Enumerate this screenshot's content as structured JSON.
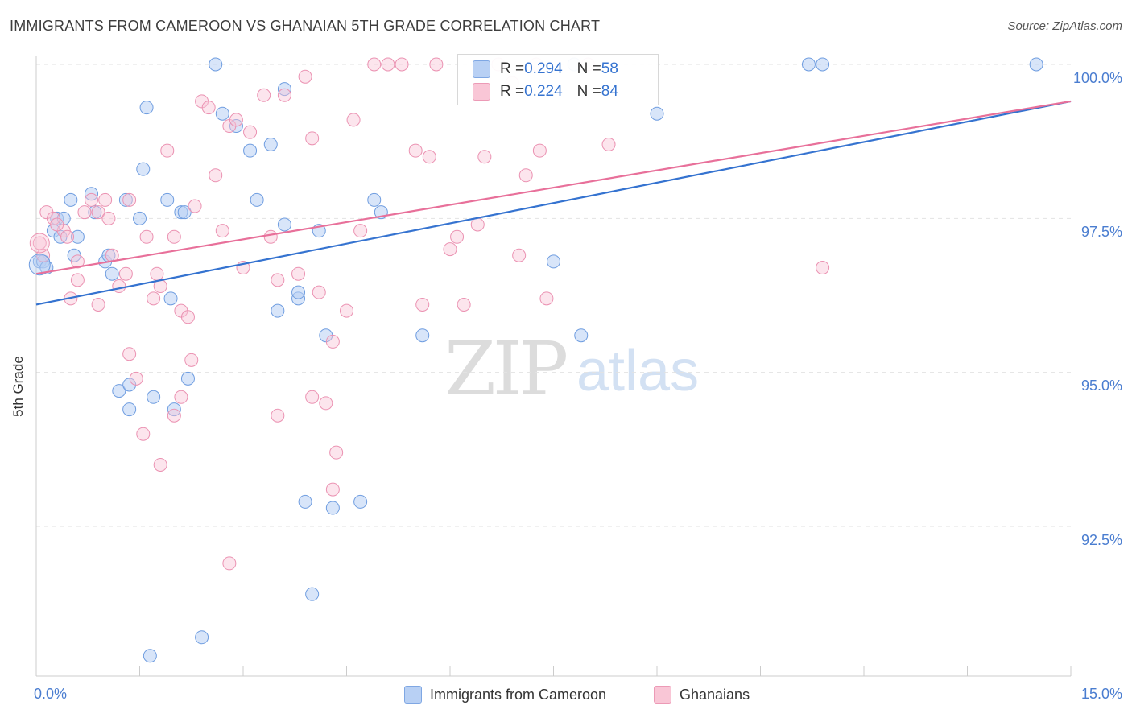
{
  "title": "IMMIGRANTS FROM CAMEROON VS GHANAIAN 5TH GRADE CORRELATION CHART",
  "source": "Source: ZipAtlas.com",
  "watermark": {
    "zip": "ZIP",
    "atlas": "atlas"
  },
  "legend": {
    "rows": [
      {
        "r_label": "R = ",
        "r_value": "0.294",
        "n_label": "N = ",
        "n_value": "58"
      },
      {
        "r_label": "R = ",
        "r_value": "0.224",
        "n_label": "N = ",
        "n_value": "84"
      }
    ]
  },
  "colors": {
    "blue": "#3573d0",
    "pink": "#e8709a",
    "blue_fill": "#b8d0f4",
    "pink_fill": "#f9c6d6",
    "axis_label": "#4a7dd0"
  },
  "chart_data": {
    "type": "scatter",
    "title": "IMMIGRANTS FROM CAMEROON VS GHANAIAN 5TH GRADE CORRELATION CHART",
    "xlabel": "",
    "ylabel": "5th Grade",
    "xlim": [
      0.0,
      15.0
    ],
    "ylim": [
      90.2,
      100.2
    ],
    "x_tick_labels": [
      "0.0%",
      "15.0%"
    ],
    "y_ticks": [
      92.5,
      95.0,
      97.5,
      100.0
    ],
    "y_tick_labels": [
      "92.5%",
      "95.0%",
      "97.5%",
      "100.0%"
    ],
    "grid": true,
    "legend_position": "top-center",
    "series": [
      {
        "name": "Immigrants from Cameroon",
        "color": "#3573d0",
        "trend": {
          "x": [
            0.0,
            15.0
          ],
          "y": [
            96.1,
            99.4
          ]
        },
        "points": [
          [
            0.05,
            96.8
          ],
          [
            0.1,
            96.8
          ],
          [
            0.25,
            97.3
          ],
          [
            0.3,
            97.5
          ],
          [
            0.4,
            97.5
          ],
          [
            0.5,
            97.8
          ],
          [
            0.55,
            96.9
          ],
          [
            0.6,
            97.2
          ],
          [
            0.8,
            97.9
          ],
          [
            0.85,
            97.6
          ],
          [
            1.0,
            96.8
          ],
          [
            1.1,
            96.6
          ],
          [
            1.05,
            96.9
          ],
          [
            1.3,
            97.8
          ],
          [
            1.5,
            97.5
          ],
          [
            1.55,
            98.3
          ],
          [
            1.6,
            99.3
          ],
          [
            1.9,
            97.8
          ],
          [
            1.95,
            96.2
          ],
          [
            2.1,
            97.6
          ],
          [
            2.15,
            97.6
          ],
          [
            2.6,
            100.0
          ],
          [
            2.7,
            99.2
          ],
          [
            2.9,
            99.0
          ],
          [
            3.1,
            98.6
          ],
          [
            3.2,
            97.8
          ],
          [
            3.4,
            98.7
          ],
          [
            3.6,
            99.6
          ],
          [
            3.5,
            96.0
          ],
          [
            3.6,
            97.4
          ],
          [
            4.1,
            97.3
          ],
          [
            4.2,
            95.6
          ],
          [
            3.8,
            96.2
          ],
          [
            4.3,
            92.8
          ],
          [
            4.7,
            92.9
          ],
          [
            4.9,
            97.8
          ],
          [
            5.0,
            97.6
          ],
          [
            1.2,
            94.7
          ],
          [
            1.35,
            94.4
          ],
          [
            1.35,
            94.8
          ],
          [
            1.7,
            94.6
          ],
          [
            2.0,
            94.4
          ],
          [
            2.2,
            94.9
          ],
          [
            3.8,
            96.3
          ],
          [
            4.0,
            91.4
          ],
          [
            3.9,
            92.9
          ],
          [
            2.4,
            90.7
          ],
          [
            1.65,
            90.4
          ],
          [
            5.6,
            95.6
          ],
          [
            7.8,
            100.0
          ],
          [
            7.5,
            96.8
          ],
          [
            7.9,
            95.6
          ],
          [
            9.0,
            99.2
          ],
          [
            11.2,
            100.0
          ],
          [
            11.4,
            100.0
          ],
          [
            14.5,
            100.0
          ],
          [
            0.15,
            96.7
          ],
          [
            0.35,
            97.2
          ]
        ]
      },
      {
        "name": "Ghanaians",
        "color": "#e8709a",
        "trend": {
          "x": [
            0.0,
            15.0
          ],
          "y": [
            96.6,
            99.4
          ]
        },
        "points": [
          [
            0.05,
            97.1
          ],
          [
            0.1,
            96.9
          ],
          [
            0.15,
            97.6
          ],
          [
            0.25,
            97.5
          ],
          [
            0.4,
            97.3
          ],
          [
            0.45,
            97.2
          ],
          [
            0.5,
            96.2
          ],
          [
            0.6,
            96.8
          ],
          [
            0.7,
            97.6
          ],
          [
            0.8,
            97.8
          ],
          [
            0.9,
            97.6
          ],
          [
            1.0,
            97.8
          ],
          [
            1.05,
            97.5
          ],
          [
            1.1,
            96.9
          ],
          [
            1.2,
            96.4
          ],
          [
            1.3,
            96.6
          ],
          [
            1.35,
            97.8
          ],
          [
            1.6,
            97.2
          ],
          [
            1.7,
            96.2
          ],
          [
            1.75,
            96.6
          ],
          [
            1.8,
            96.4
          ],
          [
            1.9,
            98.6
          ],
          [
            2.0,
            97.2
          ],
          [
            2.1,
            96.0
          ],
          [
            2.2,
            95.9
          ],
          [
            2.3,
            97.7
          ],
          [
            2.4,
            99.4
          ],
          [
            2.5,
            99.3
          ],
          [
            2.6,
            98.2
          ],
          [
            2.7,
            97.3
          ],
          [
            2.8,
            99.0
          ],
          [
            2.9,
            99.1
          ],
          [
            3.0,
            96.7
          ],
          [
            3.1,
            98.9
          ],
          [
            3.3,
            99.5
          ],
          [
            3.4,
            97.2
          ],
          [
            3.5,
            96.5
          ],
          [
            3.6,
            99.5
          ],
          [
            3.8,
            96.6
          ],
          [
            3.9,
            99.8
          ],
          [
            4.0,
            98.8
          ],
          [
            4.1,
            96.3
          ],
          [
            4.3,
            95.5
          ],
          [
            4.5,
            96.0
          ],
          [
            4.6,
            99.1
          ],
          [
            4.7,
            97.3
          ],
          [
            4.9,
            100.0
          ],
          [
            5.1,
            100.0
          ],
          [
            5.3,
            100.0
          ],
          [
            5.5,
            98.6
          ],
          [
            5.6,
            96.1
          ],
          [
            5.8,
            100.0
          ],
          [
            6.0,
            97.0
          ],
          [
            6.1,
            97.2
          ],
          [
            6.2,
            96.1
          ],
          [
            6.4,
            97.4
          ],
          [
            6.5,
            98.5
          ],
          [
            6.7,
            100.0
          ],
          [
            6.9,
            99.7
          ],
          [
            7.0,
            96.9
          ],
          [
            7.1,
            98.2
          ],
          [
            7.3,
            98.6
          ],
          [
            7.4,
            96.2
          ],
          [
            8.0,
            100.0
          ],
          [
            8.3,
            98.7
          ],
          [
            1.35,
            95.3
          ],
          [
            1.45,
            94.9
          ],
          [
            1.55,
            94.0
          ],
          [
            1.8,
            93.5
          ],
          [
            2.0,
            94.3
          ],
          [
            2.1,
            94.6
          ],
          [
            2.25,
            95.2
          ],
          [
            2.8,
            91.9
          ],
          [
            3.5,
            94.3
          ],
          [
            4.0,
            94.6
          ],
          [
            4.2,
            94.5
          ],
          [
            4.35,
            93.7
          ],
          [
            4.3,
            93.1
          ],
          [
            11.4,
            96.7
          ],
          [
            0.3,
            97.4
          ],
          [
            0.6,
            96.5
          ],
          [
            0.9,
            96.1
          ],
          [
            5.7,
            98.5
          ],
          [
            7.25,
            100.0
          ]
        ]
      }
    ]
  },
  "bottom_legend": [
    "Immigrants from Cameroon",
    "Ghanaians"
  ]
}
